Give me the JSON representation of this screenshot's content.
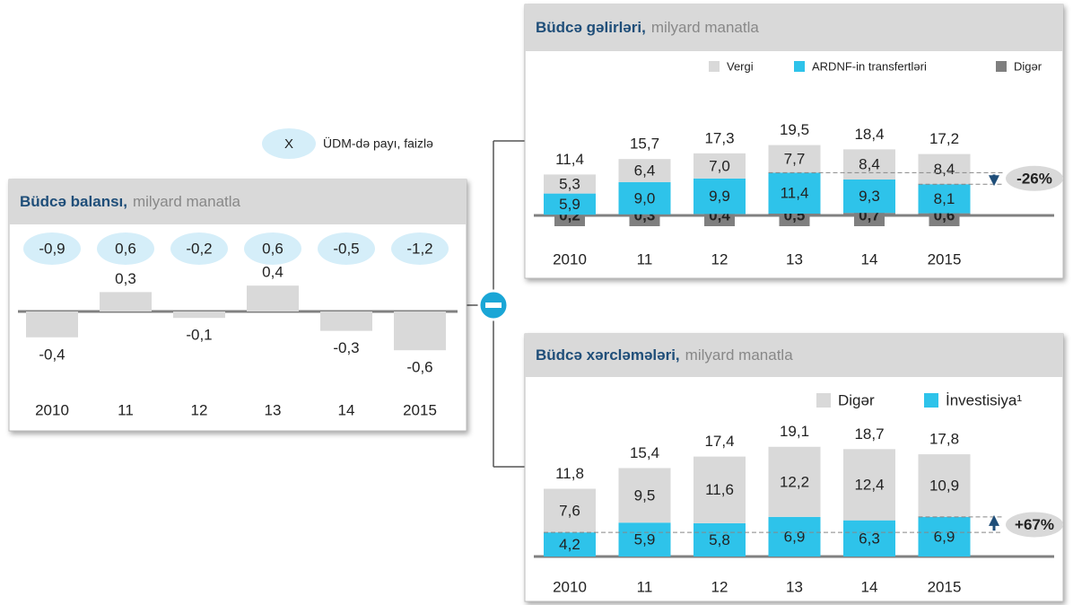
{
  "legend_note": {
    "marker": "X",
    "text": "ÜDM-də payı, faizlə"
  },
  "chart_data": [
    {
      "type": "bar",
      "title": "Büdcə balansı,",
      "subtitle": "milyard manatla",
      "categories": [
        "2010",
        "11",
        "12",
        "13",
        "14",
        "2015"
      ],
      "values": [
        -0.4,
        0.3,
        -0.1,
        0.4,
        -0.3,
        -0.6
      ],
      "value_labels": [
        "-0,4",
        "0,3",
        "-0,1",
        "0,4",
        "-0,3",
        "-0,6"
      ],
      "color": "#d9d9d9",
      "gdp_share": {
        "values": [
          -0.9,
          0.6,
          -0.2,
          0.6,
          -0.5,
          -1.2
        ],
        "value_labels": [
          "-0,9",
          "0,6",
          "-0,2",
          "0,6",
          "-0,5",
          "-1,2"
        ],
        "color": "#d5eef9"
      }
    },
    {
      "type": "stacked_bar",
      "title": "Büdcə gəlirləri,",
      "subtitle": "milyard manatla",
      "categories": [
        "2010",
        "11",
        "12",
        "13",
        "14",
        "2015"
      ],
      "series": [
        {
          "name": "Vergi",
          "color": "#d9d9d9",
          "values": [
            5.3,
            6.4,
            7.0,
            7.7,
            8.4,
            8.4
          ],
          "value_labels": [
            "5,3",
            "6,4",
            "7,0",
            "7,7",
            "8,4",
            "8,4"
          ]
        },
        {
          "name": "ARDNF-in transfertləri",
          "color": "#2ec3ea",
          "values": [
            5.9,
            9.0,
            9.9,
            11.4,
            9.3,
            8.1
          ],
          "value_labels": [
            "5,9",
            "9,0",
            "9,9",
            "11,4",
            "9,3",
            "8,1"
          ]
        },
        {
          "name": "Digər",
          "color": "#7f7f7f",
          "values": [
            0.2,
            0.3,
            0.4,
            0.5,
            0.7,
            0.6
          ],
          "value_labels": [
            "0,2",
            "0,3",
            "0,4",
            "0,5",
            "0,7",
            "0,6"
          ]
        }
      ],
      "totals": {
        "values": [
          11.4,
          15.7,
          17.3,
          19.5,
          18.4,
          17.2
        ],
        "value_labels": [
          "11,4",
          "15,7",
          "17,3",
          "19,5",
          "18,4",
          "17,2"
        ]
      },
      "annotation": "-26%"
    },
    {
      "type": "stacked_bar",
      "title": "Büdcə xərcləmələri,",
      "subtitle": "milyard manatla",
      "categories": [
        "2010",
        "11",
        "12",
        "13",
        "14",
        "2015"
      ],
      "series": [
        {
          "name": "Digər",
          "color": "#d9d9d9",
          "values": [
            7.6,
            9.5,
            11.6,
            12.2,
            12.4,
            10.9
          ],
          "value_labels": [
            "7,6",
            "9,5",
            "11,6",
            "12,2",
            "12,4",
            "10,9"
          ]
        },
        {
          "name": "İnvestisiya¹",
          "color": "#2ec3ea",
          "values": [
            4.2,
            5.9,
            5.8,
            6.9,
            6.3,
            6.9
          ],
          "value_labels": [
            "4,2",
            "5,9",
            "5,8",
            "6,9",
            "6,3",
            "6,9"
          ]
        }
      ],
      "totals": {
        "values": [
          11.8,
          15.4,
          17.4,
          19.1,
          18.7,
          17.8
        ],
        "value_labels": [
          "11,8",
          "15,4",
          "17,4",
          "19,1",
          "18,7",
          "17,8"
        ]
      },
      "annotation": "+67%"
    }
  ]
}
